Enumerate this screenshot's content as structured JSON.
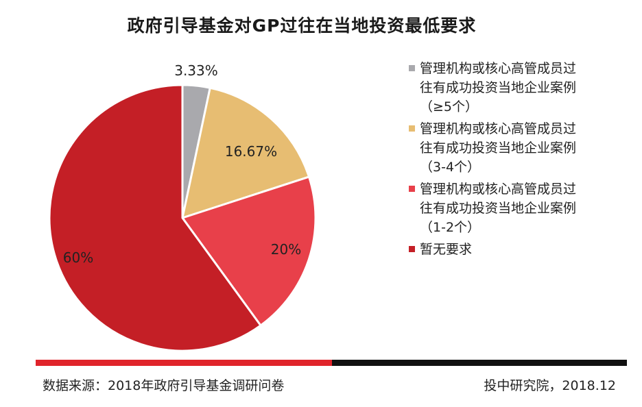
{
  "chart_data": {
    "type": "pie",
    "title": "政府引导基金对GP过往在当地投资最低要求",
    "slices": [
      {
        "label": [
          "管理机构或核心高管成员过",
          "往有成功投资当地企业案例",
          "（≥5个）"
        ],
        "value": 3.33,
        "display": "3.33%",
        "color": "#a9a9ad"
      },
      {
        "label": [
          "管理机构或核心高管成员过",
          "往有成功投资当地企业案例",
          "（3-4个）"
        ],
        "value": 16.67,
        "display": "16.67%",
        "color": "#e7bd72"
      },
      {
        "label": [
          "管理机构或核心高管成员过",
          "往有成功投资当地企业案例",
          "（1-2个）"
        ],
        "value": 20,
        "display": "20%",
        "color": "#e8404a"
      },
      {
        "label": [
          "暂无要求"
        ],
        "value": 60,
        "display": "60%",
        "color": "#c41f26"
      }
    ],
    "legend_position": "right"
  },
  "footer": {
    "source": "数据来源：2018年政府引导基金调研问卷",
    "publisher": "投中研究院，2018.12"
  },
  "colors": {
    "bar_red": "#e0242b",
    "bar_black": "#111111",
    "slice_border": "#ffffff"
  }
}
